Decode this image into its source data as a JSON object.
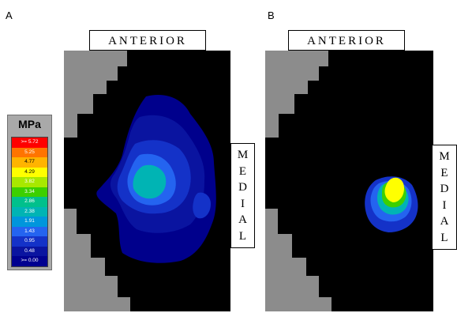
{
  "panel_a": {
    "letter": "A",
    "anterior_label": "ANTERIOR",
    "medial_letters": [
      "M",
      "E",
      "D",
      "I",
      "A",
      "L"
    ]
  },
  "panel_b": {
    "letter": "B",
    "anterior_label": "ANTERIOR",
    "medial_letters": [
      "M",
      "E",
      "D",
      "I",
      "A",
      "L"
    ]
  },
  "legend": {
    "unit": "MPa",
    "entries": [
      {
        "label": ">= 5.72",
        "color": "#ff0000",
        "text_color": "#ffffff"
      },
      {
        "label": "5.25",
        "color": "#ff7400",
        "text_color": "#ffffff"
      },
      {
        "label": "4.77",
        "color": "#ffb400",
        "text_color": "#000000"
      },
      {
        "label": "4.29",
        "color": "#ffff00",
        "text_color": "#000000"
      },
      {
        "label": "3.82",
        "color": "#a8e800",
        "text_color": "#ffffff"
      },
      {
        "label": "3.34",
        "color": "#3cd000",
        "text_color": "#ffffff"
      },
      {
        "label": "2.86",
        "color": "#00c08c",
        "text_color": "#ffffff"
      },
      {
        "label": "2.38",
        "color": "#00b4b4",
        "text_color": "#ffffff"
      },
      {
        "label": "1.91",
        "color": "#0096dc",
        "text_color": "#ffffff"
      },
      {
        "label": "1.43",
        "color": "#2464f0",
        "text_color": "#ffffff"
      },
      {
        "label": "0.95",
        "color": "#1432c8",
        "text_color": "#ffffff"
      },
      {
        "label": "0.48",
        "color": "#0a14a0",
        "text_color": "#ffffff"
      },
      {
        "label": ">= 0.00",
        "color": "#000090",
        "text_color": "#ffffff"
      }
    ]
  },
  "colors": {
    "background_region": "#000000",
    "outside_region": "#8c8c8c"
  }
}
